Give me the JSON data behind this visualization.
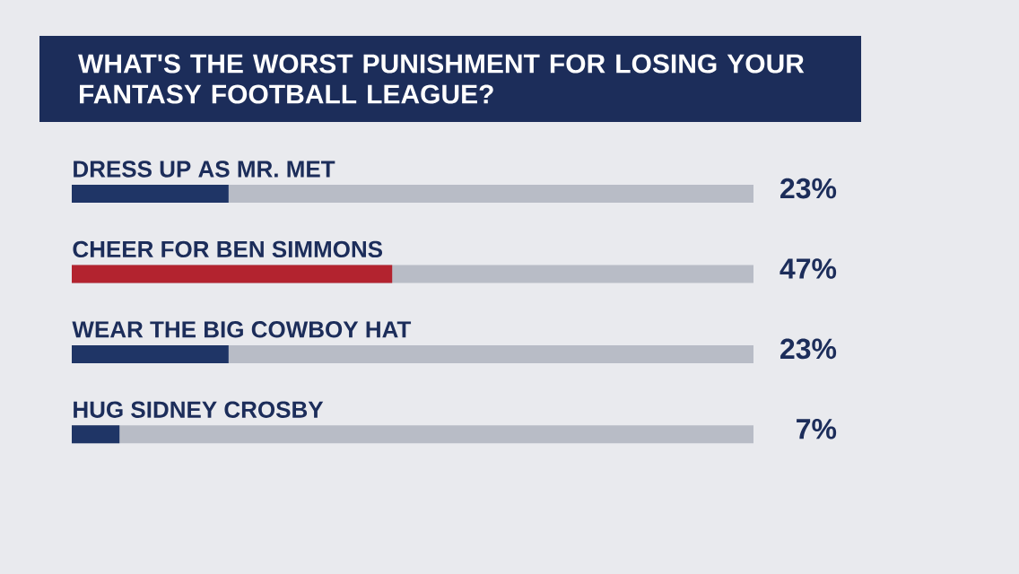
{
  "chart_data": {
    "type": "bar",
    "orientation": "horizontal",
    "title": "WHAT'S THE WORST PUNISHMENT FOR LOSING YOUR FANTASY FOOTBALL LEAGUE?",
    "categories": [
      "DRESS UP AS MR. MET",
      "CHEER FOR BEN SIMMONS",
      "WEAR THE BIG COWBOY HAT",
      "HUG SIDNEY CROSBY"
    ],
    "values": [
      23,
      47,
      23,
      7
    ],
    "colors": [
      "#1f3566",
      "#b3232f",
      "#1f3566",
      "#1f3566"
    ],
    "value_labels": [
      "23%",
      "47%",
      "23%",
      "7%"
    ],
    "xlim": [
      0,
      100
    ]
  }
}
